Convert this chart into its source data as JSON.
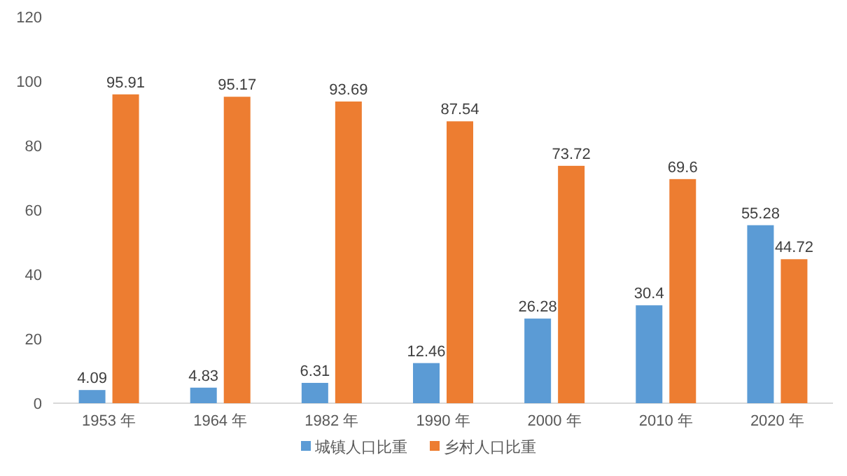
{
  "chart_data": {
    "type": "bar",
    "categories": [
      "1953 年",
      "1964 年",
      "1982 年",
      "1990 年",
      "2000 年",
      "2010 年",
      "2020 年"
    ],
    "series": [
      {
        "name": "城镇人口比重",
        "color": "#5b9bd5",
        "values": [
          4.09,
          4.83,
          6.31,
          12.46,
          26.28,
          30.4,
          55.28
        ]
      },
      {
        "name": "乡村人口比重",
        "color": "#ed7d31",
        "values": [
          95.91,
          95.17,
          93.69,
          87.54,
          73.72,
          69.6,
          44.72
        ]
      }
    ],
    "ylim": [
      0,
      120
    ],
    "yticks": [
      0,
      20,
      40,
      60,
      80,
      100,
      120
    ],
    "data_labels": true,
    "legend": "bottom",
    "grid": false
  }
}
